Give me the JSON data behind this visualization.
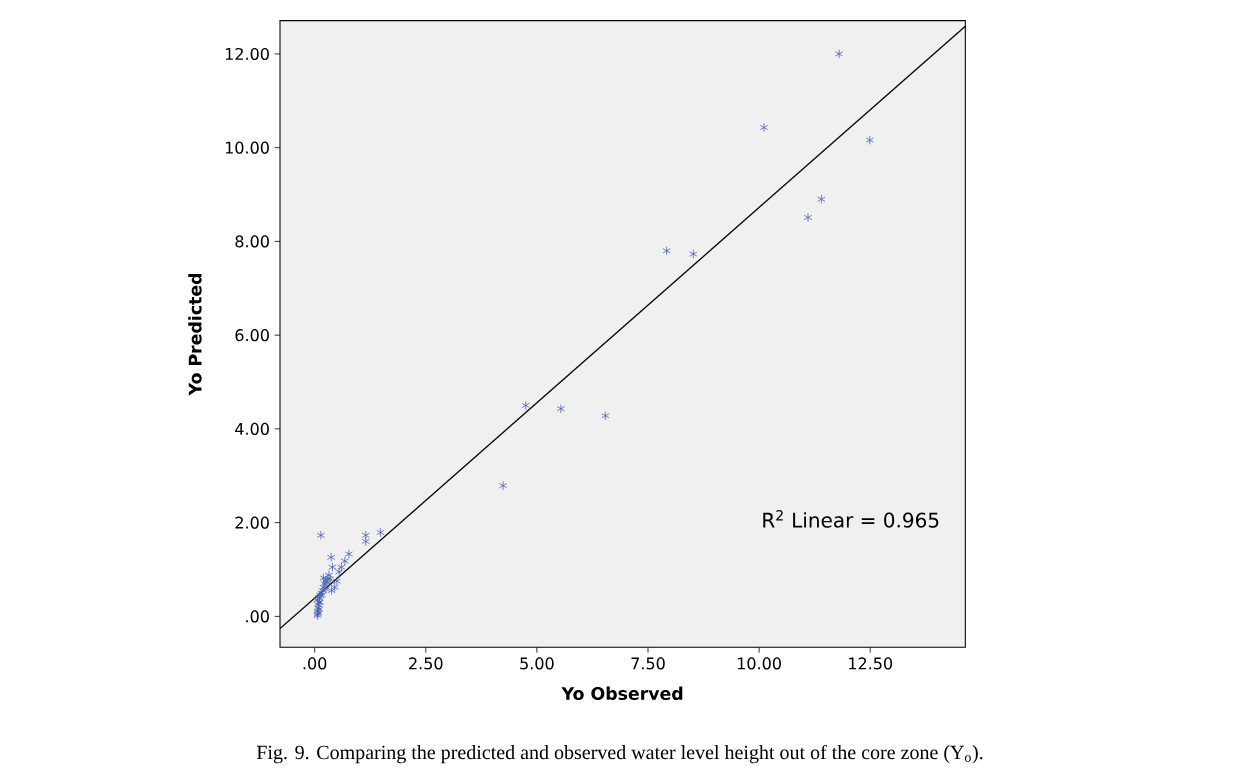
{
  "chart_data": {
    "type": "scatter",
    "xlabel": "Yo Observed",
    "ylabel": "Yo Predicted",
    "annotations": [
      "R$^{2}$ Linear = 0.965",
      "Fig. 9.  Comparing the predicted and observed water level height out of the core zone (Y$_{o}$)."
    ],
    "xlim": [
      -0.78,
      14.64
    ],
    "ylim": [
      -0.66,
      12.71
    ],
    "xticks": [
      {
        "value": 0,
        "label": ".00"
      },
      {
        "value": 2.5,
        "label": "2.50"
      },
      {
        "value": 5,
        "label": "5.00"
      },
      {
        "value": 7.5,
        "label": "7.50"
      },
      {
        "value": 10,
        "label": "10.00"
      },
      {
        "value": 12.5,
        "label": "12.50"
      }
    ],
    "yticks": [
      {
        "value": 0,
        "label": ".00"
      },
      {
        "value": 2,
        "label": "2.00"
      },
      {
        "value": 4,
        "label": "4.00"
      },
      {
        "value": 6,
        "label": "6.00"
      },
      {
        "value": 8,
        "label": "8.00"
      },
      {
        "value": 10,
        "label": "10.00"
      },
      {
        "value": 12,
        "label": "12.00"
      }
    ],
    "series": [
      {
        "color": "#4a63b8",
        "marker": "cross",
        "x": [
          0.14,
          1.15,
          1.15,
          1.48,
          0.37,
          0.77,
          0.68,
          0.6,
          0.55,
          0.45,
          0.38,
          0.32,
          0.28,
          0.25,
          0.22,
          0.2,
          0.18,
          0.3,
          0.35,
          0.4,
          0.5,
          0.15,
          0.12,
          0.1,
          0.1,
          0.08,
          0.08,
          0.07,
          0.07,
          0.06,
          0.06,
          0.08,
          0.1,
          0.12,
          0.16,
          0.2,
          0.25,
          4.24,
          4.75,
          5.54,
          6.54,
          7.92,
          8.52,
          10.11,
          11.8,
          12.49,
          11.1,
          11.4
        ],
        "values": [
          1.73,
          1.73,
          1.6,
          1.79,
          1.26,
          1.33,
          1.18,
          1.05,
          0.95,
          0.62,
          0.55,
          0.88,
          0.8,
          0.75,
          0.7,
          0.62,
          0.55,
          0.72,
          0.8,
          1.05,
          0.75,
          0.5,
          0.45,
          0.4,
          0.3,
          0.25,
          0.18,
          0.12,
          0.05,
          0.02,
          0.35,
          0.08,
          0.15,
          0.3,
          0.45,
          0.82,
          0.58,
          2.79,
          4.5,
          4.43,
          4.28,
          7.8,
          7.73,
          10.43,
          12.0,
          10.16,
          8.51,
          8.9
        ]
      },
      {
        "type": "line",
        "color": "#000000",
        "marker": "none",
        "x": [
          -0.78,
          14.64
        ],
        "values": [
          -0.26,
          12.59
        ]
      }
    ]
  }
}
